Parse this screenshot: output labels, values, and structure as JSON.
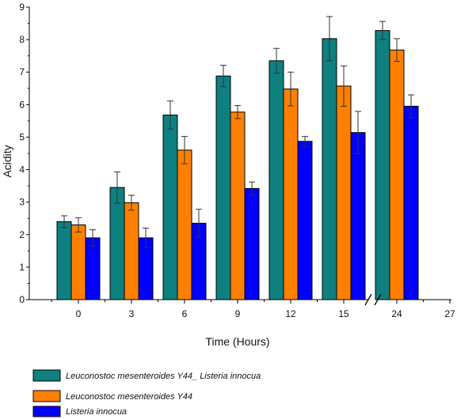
{
  "chart_data": {
    "type": "bar",
    "title": "",
    "xlabel": "Time (Hours)",
    "ylabel": "Acidity",
    "ylim": [
      0,
      9
    ],
    "yticks": [
      0,
      1,
      2,
      3,
      4,
      5,
      6,
      7,
      8,
      9
    ],
    "xticks": [
      "0",
      "3",
      "6",
      "9",
      "12",
      "15",
      "24",
      "27"
    ],
    "categories": [
      "0",
      "3",
      "6",
      "9",
      "12",
      "15",
      "24"
    ],
    "axis_break": "between 15 and 24",
    "grid": false,
    "legend_position": "bottom-left",
    "series": [
      {
        "name": "Leuconostoc mesenteroides Y44_ Listeria innocua",
        "color": "#0e8080",
        "values": [
          2.4,
          3.45,
          5.68,
          6.88,
          7.35,
          8.03,
          8.28
        ],
        "errors": [
          0.18,
          0.48,
          0.43,
          0.33,
          0.38,
          0.68,
          0.28
        ]
      },
      {
        "name": "Leuconostoc mesenteroides Y44",
        "color": "#ff8000",
        "values": [
          2.3,
          2.98,
          4.6,
          5.77,
          6.48,
          6.57,
          7.68
        ],
        "errors": [
          0.22,
          0.23,
          0.42,
          0.2,
          0.52,
          0.62,
          0.35
        ]
      },
      {
        "name": "Listeria innocua",
        "color": "#0000ff",
        "values": [
          1.9,
          1.9,
          2.35,
          3.42,
          4.87,
          5.14,
          5.95
        ],
        "errors": [
          0.25,
          0.3,
          0.43,
          0.2,
          0.15,
          0.65,
          0.35
        ]
      }
    ]
  }
}
